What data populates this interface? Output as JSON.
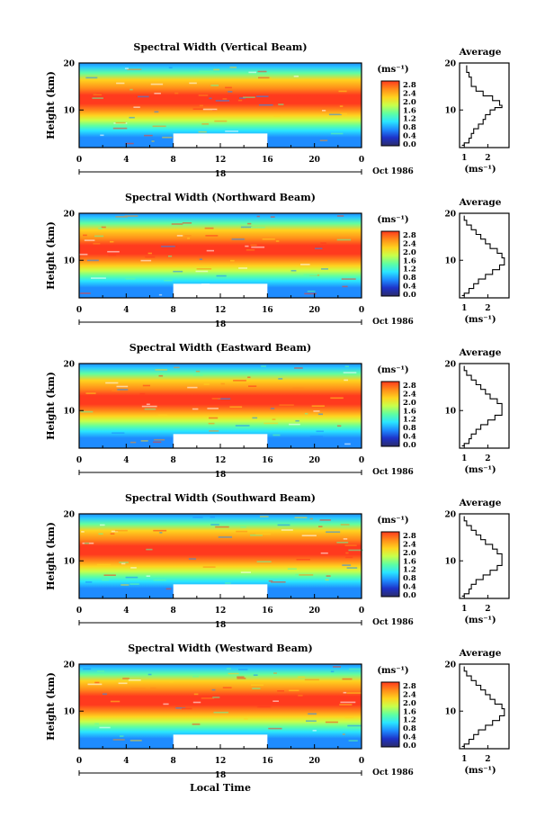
{
  "figure": {
    "x_axis_label": "Local Time",
    "date_label": "Oct 1986",
    "day_label": "18"
  },
  "colorbar": {
    "unit": "(ms⁻¹)",
    "ticks": [
      "2.8",
      "2.4",
      "2.0",
      "1.6",
      "1.2",
      "0.8",
      "0.4",
      "0.0"
    ],
    "colors": [
      "#ff3a1e",
      "#ff8c1a",
      "#ffd21e",
      "#c8ff4a",
      "#60ffa0",
      "#2ae6ff",
      "#1e8cff",
      "#1e32c8",
      "#2c2c6a"
    ]
  },
  "chart_data": [
    {
      "type": "heatmap",
      "title": "Spectral Width (Vertical Beam)",
      "xlabel": "",
      "ylabel": "Height (km)",
      "xlim": [
        0,
        24
      ],
      "ylim": [
        2,
        20
      ],
      "x_ticks": [
        "0",
        "4",
        "8",
        "12",
        "16",
        "20",
        "0"
      ],
      "y_ticks": [
        "10",
        "20"
      ],
      "missing_block": {
        "x": [
          8,
          16
        ],
        "y": [
          2,
          5
        ]
      },
      "value_unit": "ms-1",
      "color_range": [
        0.0,
        3.0
      ],
      "profile": {
        "title": "Average",
        "xlim": [
          0.8,
          2.9
        ],
        "x_ticks": [
          "1",
          "2"
        ],
        "xlabel": "(ms⁻¹)",
        "y_ticks": [
          "10",
          "20"
        ],
        "x": [
          0.9,
          1.0,
          1.2,
          1.3,
          1.4,
          1.6,
          1.8,
          1.9,
          2.1,
          2.3,
          2.6,
          2.5,
          2.2,
          1.8,
          1.5,
          1.3,
          1.3,
          1.2,
          1.1
        ],
        "y": [
          2.5,
          3,
          4,
          5,
          6,
          7,
          8,
          9,
          10,
          10.5,
          11,
          12,
          13,
          14,
          15,
          16,
          17,
          18,
          19.5
        ]
      }
    },
    {
      "type": "heatmap",
      "title": "Spectral Width (Northward Beam)",
      "xlabel": "",
      "ylabel": "Height (km)",
      "xlim": [
        0,
        24
      ],
      "ylim": [
        2,
        20
      ],
      "x_ticks": [
        "0",
        "4",
        "8",
        "12",
        "16",
        "20",
        "0"
      ],
      "y_ticks": [
        "10",
        "20"
      ],
      "missing_block": {
        "x": [
          8,
          16
        ],
        "y": [
          2,
          5
        ]
      },
      "value_unit": "ms-1",
      "color_range": [
        0.0,
        3.0
      ],
      "profile": {
        "title": "Average",
        "xlim": [
          0.8,
          2.9
        ],
        "x_ticks": [
          "1",
          "2"
        ],
        "xlabel": "(ms⁻¹)",
        "y_ticks": [
          "10",
          "20"
        ],
        "x": [
          0.9,
          1.0,
          1.2,
          1.4,
          1.6,
          1.9,
          2.2,
          2.5,
          2.7,
          2.6,
          2.4,
          2.1,
          1.9,
          1.7,
          1.5,
          1.3,
          1.1,
          1.0
        ],
        "y": [
          2.5,
          3,
          4,
          5,
          6,
          7,
          8,
          9,
          10.5,
          11.5,
          12.5,
          13.5,
          14.5,
          15.5,
          16.5,
          17.5,
          18.5,
          19.5
        ]
      }
    },
    {
      "type": "heatmap",
      "title": "Spectral Width (Eastward Beam)",
      "xlabel": "",
      "ylabel": "Height (km)",
      "xlim": [
        0,
        24
      ],
      "ylim": [
        2,
        20
      ],
      "x_ticks": [
        "0",
        "4",
        "8",
        "12",
        "16",
        "20",
        "0"
      ],
      "y_ticks": [
        "10",
        "20"
      ],
      "missing_block": {
        "x": [
          8,
          16
        ],
        "y": [
          2,
          5
        ]
      },
      "value_unit": "ms-1",
      "color_range": [
        0.0,
        3.0
      ],
      "profile": {
        "title": "Average",
        "xlim": [
          0.8,
          2.9
        ],
        "x_ticks": [
          "1",
          "2"
        ],
        "xlabel": "(ms⁻¹)",
        "y_ticks": [
          "10",
          "20"
        ],
        "x": [
          0.9,
          1.0,
          1.2,
          1.3,
          1.5,
          1.7,
          2.0,
          2.3,
          2.6,
          2.6,
          2.4,
          2.1,
          1.9,
          1.7,
          1.5,
          1.3,
          1.1,
          1.0
        ],
        "y": [
          2.5,
          3,
          4,
          5,
          6,
          7,
          8,
          9,
          10.5,
          11.5,
          12.5,
          13.5,
          14.5,
          15.5,
          16.5,
          17.5,
          18.5,
          19.5
        ]
      }
    },
    {
      "type": "heatmap",
      "title": "Spectral Width (Southward Beam)",
      "xlabel": "",
      "ylabel": "Height (km)",
      "xlim": [
        0,
        24
      ],
      "ylim": [
        2,
        20
      ],
      "x_ticks": [
        "0",
        "4",
        "8",
        "12",
        "16",
        "20",
        "0"
      ],
      "y_ticks": [
        "10",
        "20"
      ],
      "missing_block": {
        "x": [
          8,
          16
        ],
        "y": [
          2,
          5
        ]
      },
      "value_unit": "ms-1",
      "color_range": [
        0.0,
        3.0
      ],
      "profile": {
        "title": "Average",
        "xlim": [
          0.8,
          2.9
        ],
        "x_ticks": [
          "1",
          "2"
        ],
        "xlabel": "(ms⁻¹)",
        "y_ticks": [
          "10",
          "20"
        ],
        "x": [
          0.9,
          1.0,
          1.2,
          1.3,
          1.5,
          1.8,
          2.1,
          2.4,
          2.6,
          2.6,
          2.4,
          2.2,
          1.9,
          1.7,
          1.5,
          1.3,
          1.1,
          1.0
        ],
        "y": [
          2.5,
          3,
          4,
          5,
          6,
          7,
          8,
          9,
          10.5,
          11.5,
          12.5,
          13.5,
          14.5,
          15.5,
          16.5,
          17.5,
          18.5,
          19.5
        ]
      }
    },
    {
      "type": "heatmap",
      "title": "Spectral Width (Westward Beam)",
      "xlabel": "",
      "ylabel": "Height (km)",
      "xlim": [
        0,
        24
      ],
      "ylim": [
        2,
        20
      ],
      "x_ticks": [
        "0",
        "4",
        "8",
        "12",
        "16",
        "20",
        "0"
      ],
      "y_ticks": [
        "10",
        "20"
      ],
      "missing_block": {
        "x": [
          8,
          16
        ],
        "y": [
          2,
          5
        ]
      },
      "value_unit": "ms-1",
      "color_range": [
        0.0,
        3.0
      ],
      "profile": {
        "title": "Average",
        "xlim": [
          0.8,
          2.9
        ],
        "x_ticks": [
          "1",
          "2"
        ],
        "xlabel": "(ms⁻¹)",
        "y_ticks": [
          "10",
          "20"
        ],
        "x": [
          0.9,
          1.0,
          1.2,
          1.4,
          1.6,
          1.9,
          2.2,
          2.5,
          2.7,
          2.6,
          2.3,
          2.1,
          1.9,
          1.7,
          1.5,
          1.3,
          1.1,
          1.0
        ],
        "y": [
          2.5,
          3,
          4,
          5,
          6,
          7,
          8,
          9,
          10.5,
          11.5,
          12.5,
          13.5,
          14.5,
          15.5,
          16.5,
          17.5,
          18.5,
          19.5
        ]
      }
    }
  ]
}
